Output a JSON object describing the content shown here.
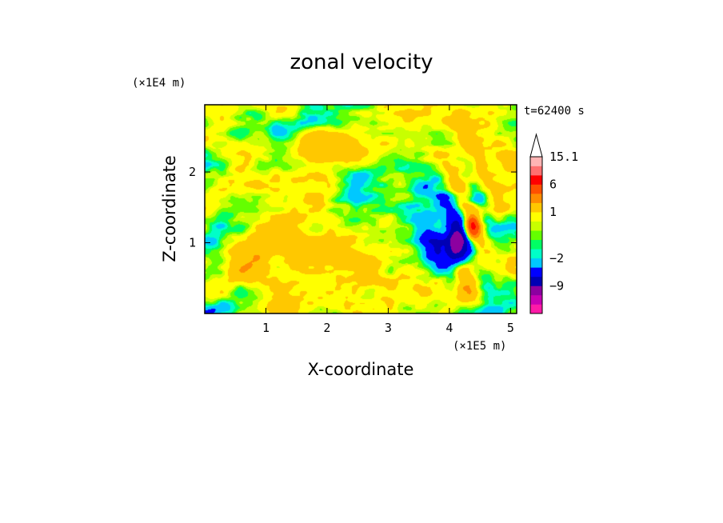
{
  "chart_data": {
    "type": "heatmap",
    "title": "zonal velocity",
    "xlabel": "X-coordinate",
    "ylabel": "Z-coordinate",
    "x_unit": "(×1E5 m)",
    "y_unit": "(×1E4 m)",
    "time_label": "t=62400 s",
    "xlim": [
      0,
      5.1
    ],
    "ylim": [
      0,
      2.95
    ],
    "x_ticks": [
      "1",
      "2",
      "3",
      "4",
      "5"
    ],
    "x_tick_values": [
      1,
      2,
      3,
      4,
      5
    ],
    "y_ticks": [
      "1",
      "2"
    ],
    "y_tick_values": [
      1,
      2
    ],
    "colorbar": {
      "levels": [
        -16,
        -12,
        -9,
        -6,
        -4,
        -2,
        -1,
        -0.5,
        0,
        0.5,
        1,
        2,
        4,
        6,
        9,
        12,
        15.1
      ],
      "colors": [
        "#ff1aa8",
        "#c800b4",
        "#8c00a0",
        "#0000b4",
        "#0000ff",
        "#00c8ff",
        "#00ffc8",
        "#00ff64",
        "#64ff00",
        "#c8ff00",
        "#ffff00",
        "#ffc800",
        "#ff8c00",
        "#ff5000",
        "#ff0000",
        "#ff7070",
        "#ffb4b4"
      ],
      "labels": [
        "15.1",
        "6",
        "1",
        "−2",
        "−9"
      ],
      "label_values": [
        15.1,
        6,
        1,
        -2,
        -9
      ],
      "extend": "max"
    },
    "grid": false
  }
}
